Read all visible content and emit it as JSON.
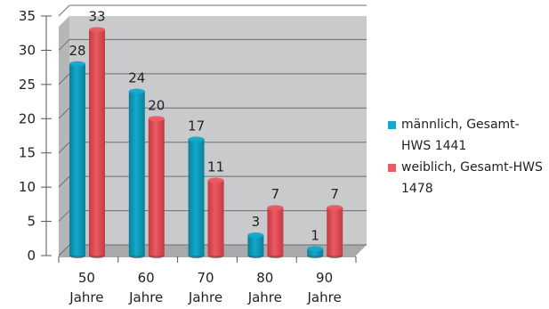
{
  "chart_data": {
    "type": "bar",
    "categories": [
      "50 Jahre",
      "60 Jahre",
      "70 Jahre",
      "80 Jahre",
      "90 Jahre"
    ],
    "series": [
      {
        "name": "männlich, Gesamt-HWS 1441",
        "values": [
          28,
          24,
          17,
          3,
          1
        ],
        "color": "#12a9cc"
      },
      {
        "name": "weiblich, Gesamt-HWS 1478",
        "values": [
          33,
          20,
          11,
          7,
          7
        ],
        "color": "#ea5a61"
      }
    ],
    "y_ticks": [
      "0",
      "5",
      "10",
      "15",
      "20",
      "25",
      "30",
      "35"
    ],
    "ylim": [
      0,
      35
    ],
    "grid": true,
    "legend_position": "right"
  },
  "legend": {
    "items": [
      {
        "label": "männlich, Gesamt-HWS 1441",
        "color": "#12a9cc"
      },
      {
        "label": "weiblich, Gesamt-HWS 1478",
        "color": "#ea5a61"
      }
    ]
  }
}
